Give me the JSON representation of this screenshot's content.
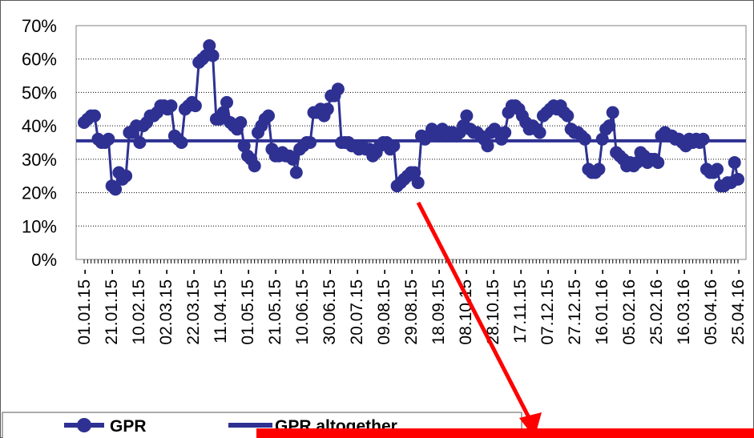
{
  "chart_data": {
    "type": "line",
    "ylim": [
      0,
      0.7
    ],
    "y_tick_labels": [
      "0%",
      "10%",
      "20%",
      "30%",
      "40%",
      "50%",
      "60%",
      "70%"
    ],
    "x_tick_labels": [
      "01.01.15 -",
      "21.01.15 -",
      "10.02.15 -",
      "02.03.15 -",
      "22.03.15 -",
      "11.04.15 -",
      "01.05.15 -",
      "21.05.15 -",
      "10.06.15 -",
      "30.06.15 -",
      "20.07.15 -",
      "09.08.15 -",
      "29.08.15 -",
      "18.09.15 -",
      "08.10.15 -",
      "28.10.15 -",
      "17.11.15 -",
      "07.12.15 -",
      "27.12.15 -",
      "16.01.16 -",
      "05.02.16 -",
      "25.02.16 -",
      "16.03.16 -",
      "05.04.16 -",
      "25.04.16 -"
    ],
    "grid": "horizontal",
    "series": [
      {
        "name": "GPR",
        "color": "#2e3192",
        "marker": "circle",
        "values": [
          0.41,
          0.42,
          0.43,
          0.43,
          0.36,
          0.35,
          0.35,
          0.36,
          0.22,
          0.21,
          0.26,
          0.24,
          0.25,
          0.38,
          0.38,
          0.4,
          0.35,
          0.4,
          0.41,
          0.43,
          0.43,
          0.44,
          0.46,
          0.46,
          0.45,
          0.46,
          0.37,
          0.36,
          0.35,
          0.45,
          0.46,
          0.47,
          0.46,
          0.59,
          0.6,
          0.61,
          0.64,
          0.61,
          0.42,
          0.42,
          0.44,
          0.47,
          0.41,
          0.4,
          0.39,
          0.41,
          0.34,
          0.31,
          0.3,
          0.28,
          0.38,
          0.4,
          0.42,
          0.43,
          0.33,
          0.31,
          0.31,
          0.32,
          0.31,
          0.31,
          0.3,
          0.26,
          0.33,
          0.34,
          0.35,
          0.35,
          0.44,
          0.44,
          0.45,
          0.43,
          0.45,
          0.49,
          0.49,
          0.51,
          0.35,
          0.35,
          0.35,
          0.34,
          0.34,
          0.33,
          0.34,
          0.33,
          0.33,
          0.31,
          0.32,
          0.34,
          0.35,
          0.35,
          0.33,
          0.34,
          0.22,
          0.23,
          0.24,
          0.25,
          0.26,
          0.26,
          0.23,
          0.37,
          0.36,
          0.37,
          0.39,
          0.38,
          0.37,
          0.39,
          0.37,
          0.38,
          0.38,
          0.37,
          0.38,
          0.4,
          0.43,
          0.39,
          0.38,
          0.38,
          0.37,
          0.36,
          0.34,
          0.38,
          0.39,
          0.38,
          0.36,
          0.38,
          0.44,
          0.46,
          0.46,
          0.45,
          0.43,
          0.41,
          0.39,
          0.4,
          0.39,
          0.38,
          0.43,
          0.44,
          0.45,
          0.46,
          0.45,
          0.46,
          0.44,
          0.43,
          0.39,
          0.38,
          0.38,
          0.37,
          0.36,
          0.27,
          0.26,
          0.26,
          0.27,
          0.36,
          0.39,
          0.4,
          0.44,
          0.32,
          0.31,
          0.3,
          0.28,
          0.29,
          0.28,
          0.29,
          0.32,
          0.31,
          0.29,
          0.3,
          0.3,
          0.29,
          0.37,
          0.38,
          0.37,
          0.37,
          0.36,
          0.36,
          0.35,
          0.34,
          0.36,
          0.35,
          0.36,
          0.35,
          0.36,
          0.27,
          0.26,
          0.26,
          0.27,
          0.22,
          0.22,
          0.23,
          0.23,
          0.29,
          0.24
        ]
      },
      {
        "name": "GPR altogether",
        "color": "#2e3192",
        "marker": "none",
        "values": [
          0.355,
          0.355
        ]
      }
    ],
    "legend": {
      "placement": "bottom-left",
      "entries": [
        "GPR",
        "GPR altogether"
      ]
    },
    "annotation_arrow_color": "#ff0000"
  }
}
